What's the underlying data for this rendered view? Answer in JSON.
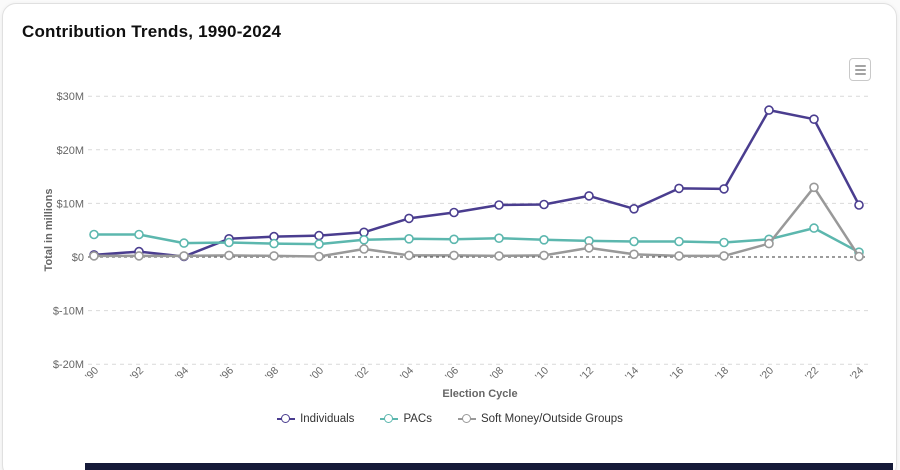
{
  "header": {
    "title": "Contribution Trends, 1990-2024"
  },
  "toolbar": {
    "menu_icon": "hamburger-menu-icon"
  },
  "colors": {
    "grid": "#d9d9d9",
    "zero_line": "#3a3a3a",
    "tick_text": "#666666",
    "bottom_bar": "#151a38"
  },
  "chart_data": {
    "type": "line",
    "title": "Contribution Trends, 1990-2024",
    "xlabel": "Election Cycle",
    "ylabel": "Total in millions",
    "categories": [
      "'90",
      "'92",
      "'94",
      "'96",
      "'98",
      "'00",
      "'02",
      "'04",
      "'06",
      "'08",
      "'10",
      "'12",
      "'14",
      "'16",
      "'18",
      "'20",
      "'22",
      "'24"
    ],
    "yticks": [
      "$30M",
      "$20M",
      "$10M",
      "$0",
      "$-10M",
      "$-20M"
    ],
    "ytick_values": [
      30,
      20,
      10,
      0,
      -10,
      -20
    ],
    "ylim": [
      -20,
      30
    ],
    "grid": true,
    "legend_position": "bottom",
    "series": [
      {
        "name": "Individuals",
        "color": "#4a3d8f",
        "values": [
          0.4,
          1.0,
          0.1,
          3.4,
          3.8,
          4.0,
          4.6,
          7.2,
          8.3,
          9.7,
          9.8,
          11.4,
          9.0,
          12.8,
          12.7,
          27.4,
          25.7,
          9.7
        ]
      },
      {
        "name": "PACs",
        "color": "#5cb7ae",
        "values": [
          4.2,
          4.2,
          2.6,
          2.7,
          2.5,
          2.4,
          3.2,
          3.4,
          3.3,
          3.5,
          3.2,
          3.0,
          2.9,
          2.9,
          2.7,
          3.3,
          5.4,
          0.9
        ]
      },
      {
        "name": "Soft Money/Outside Groups",
        "color": "#999999",
        "values": [
          0.2,
          0.2,
          0.2,
          0.3,
          0.2,
          0.1,
          1.5,
          0.3,
          0.3,
          0.2,
          0.3,
          1.7,
          0.5,
          0.2,
          0.2,
          2.5,
          13.0,
          0.1
        ]
      }
    ]
  }
}
